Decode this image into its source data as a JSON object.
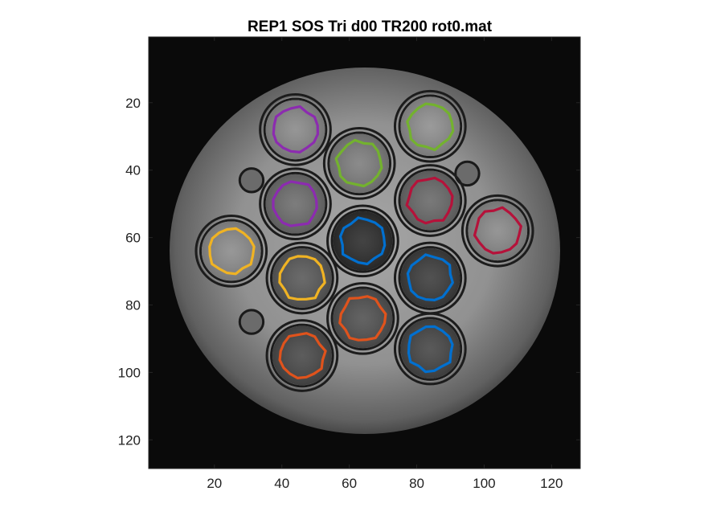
{
  "title": "REP1 SOS Tri d00 TR200 rot0.mat",
  "axes": {
    "xticks": [
      "20",
      "40",
      "60",
      "80",
      "100",
      "120"
    ],
    "yticks": [
      "20",
      "40",
      "60",
      "80",
      "100",
      "120"
    ],
    "xlim": [
      0.5,
      128.5
    ],
    "ylim": [
      0.5,
      128.5
    ],
    "y_direction": "reversed"
  },
  "colors": {
    "figure_bg": "#ffffff",
    "image_bg": "#0a0a0a",
    "purple": "#8c2bb0",
    "green": "#73b22e",
    "red": "#b5123a",
    "yellow": "#f0b323",
    "blue": "#0070d0",
    "orange": "#e0531c"
  },
  "phantom": {
    "center": [
      64,
      66
    ],
    "vials": [
      {
        "cx": 44,
        "cy": 28,
        "r": 9.5,
        "shade": "#8a8a8a",
        "roi": "purple"
      },
      {
        "cx": 84,
        "cy": 27,
        "r": 9.5,
        "shade": "#8f8f8f",
        "roi": "green"
      },
      {
        "cx": 63,
        "cy": 38,
        "r": 9.5,
        "shade": "#7e7e7e",
        "roi": "green"
      },
      {
        "cx": 44,
        "cy": 50,
        "r": 9.5,
        "shade": "#6e6e6e",
        "roi": "purple"
      },
      {
        "cx": 84,
        "cy": 49,
        "r": 9.5,
        "shade": "#6a6a6a",
        "roi": "red"
      },
      {
        "cx": 104,
        "cy": 58,
        "r": 9.5,
        "shade": "#8a8a8a",
        "roi": "red"
      },
      {
        "cx": 25,
        "cy": 64,
        "r": 9.5,
        "shade": "#8c8c8c",
        "roi": "yellow"
      },
      {
        "cx": 64,
        "cy": 61,
        "r": 9.5,
        "shade": "#2e2e2e",
        "roi": "blue"
      },
      {
        "cx": 84,
        "cy": 72,
        "r": 9.5,
        "shade": "#3e3e3e",
        "roi": "blue"
      },
      {
        "cx": 46,
        "cy": 72,
        "r": 9.5,
        "shade": "#5a5a5a",
        "roi": "yellow"
      },
      {
        "cx": 64,
        "cy": 84,
        "r": 9.5,
        "shade": "#525252",
        "roi": "orange"
      },
      {
        "cx": 46,
        "cy": 95,
        "r": 9.5,
        "shade": "#4a4a4a",
        "roi": "orange"
      },
      {
        "cx": 84,
        "cy": 93,
        "r": 9.5,
        "shade": "#474747",
        "roi": "blue"
      }
    ],
    "bubbles": [
      {
        "cx": 31,
        "cy": 43,
        "r": 3.5
      },
      {
        "cx": 95,
        "cy": 41,
        "r": 3.5
      },
      {
        "cx": 31,
        "cy": 85,
        "r": 3.5
      }
    ]
  }
}
